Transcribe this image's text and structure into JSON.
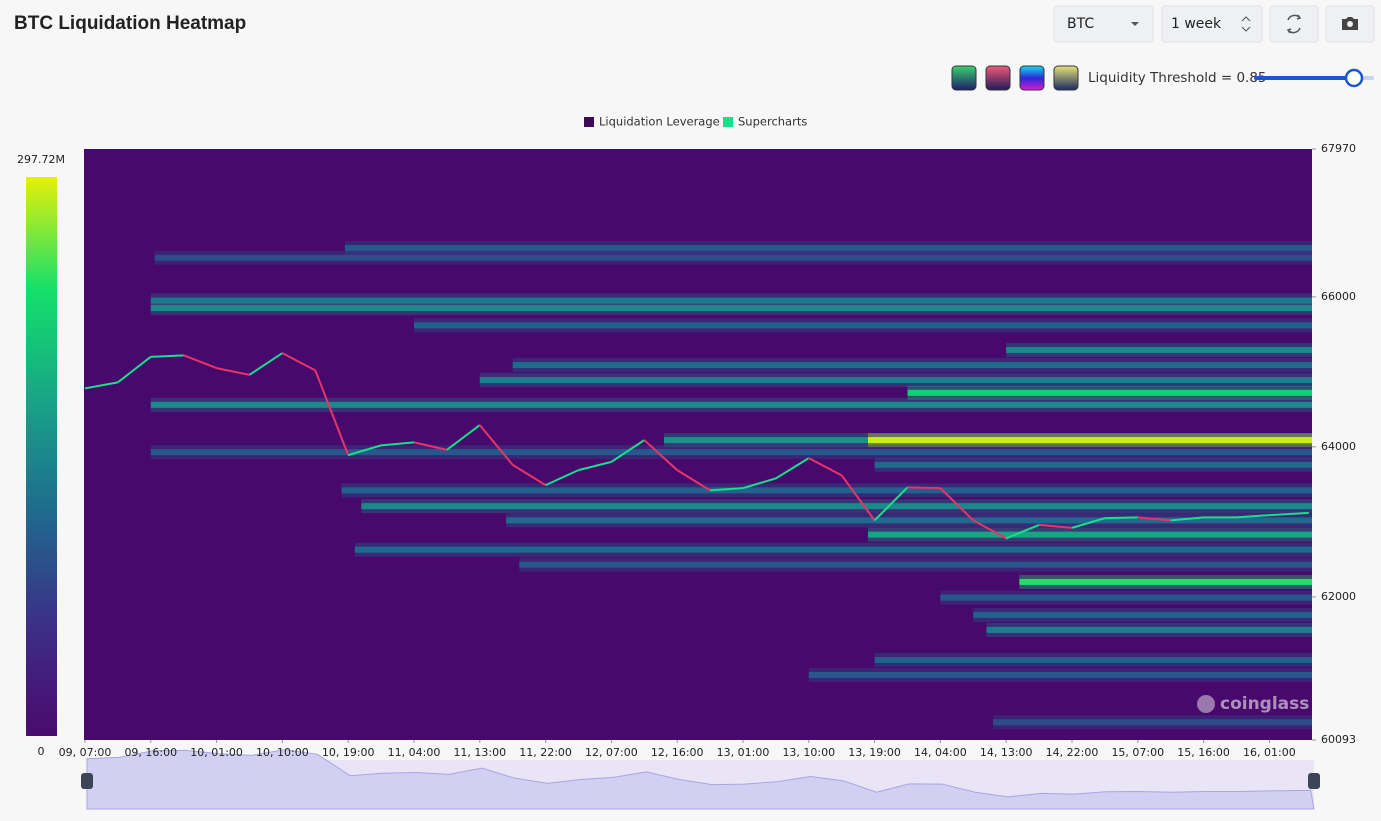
{
  "header": {
    "title": "BTC Liquidation Heatmap",
    "symbol": "BTC",
    "range": "1 week",
    "threshold": "Liquidity Threshold = 0.85"
  },
  "chart_data": {
    "type": "heatmap",
    "heatmap": {
      "name": "Liquidation Leverage",
      "color": "#3d0a55",
      "bands": [
        {
          "price": 66650,
          "start": 3.95,
          "value": 100000000
        },
        {
          "price": 66520,
          "start": 1.06,
          "value": 90000000
        },
        {
          "price": 65950,
          "start": 1.0,
          "value": 130000000
        },
        {
          "price": 65850,
          "start": 1.0,
          "value": 150000000
        },
        {
          "price": 65620,
          "start": 5.0,
          "value": 110000000
        },
        {
          "price": 65290,
          "start": 14.0,
          "value": 150000000
        },
        {
          "price": 65090,
          "start": 6.5,
          "value": 120000000
        },
        {
          "price": 64890,
          "start": 6.0,
          "value": 140000000
        },
        {
          "price": 64720,
          "start": 12.5,
          "value": 220000000
        },
        {
          "price": 64560,
          "start": 1.0,
          "value": 150000000
        },
        {
          "price": 64090,
          "start": 8.8,
          "value": 160000000
        },
        {
          "price": 64090,
          "start": 11.9,
          "value": 290000000
        },
        {
          "price": 63930,
          "start": 1.0,
          "value": 100000000
        },
        {
          "price": 63760,
          "start": 12.0,
          "value": 120000000
        },
        {
          "price": 63420,
          "start": 3.9,
          "value": 110000000
        },
        {
          "price": 63210,
          "start": 4.2,
          "value": 150000000
        },
        {
          "price": 63020,
          "start": 6.4,
          "value": 120000000
        },
        {
          "price": 62830,
          "start": 11.9,
          "value": 180000000
        },
        {
          "price": 62630,
          "start": 4.1,
          "value": 120000000
        },
        {
          "price": 62430,
          "start": 6.6,
          "value": 100000000
        },
        {
          "price": 62200,
          "start": 14.2,
          "value": 240000000
        },
        {
          "price": 61990,
          "start": 13.0,
          "value": 100000000
        },
        {
          "price": 61760,
          "start": 13.5,
          "value": 110000000
        },
        {
          "price": 61560,
          "start": 13.7,
          "value": 140000000
        },
        {
          "price": 61160,
          "start": 12.0,
          "value": 110000000
        },
        {
          "price": 60960,
          "start": 11.0,
          "value": 100000000
        },
        {
          "price": 60330,
          "start": 13.8,
          "value": 90000000
        }
      ]
    },
    "series": [
      {
        "name": "Supercharts",
        "color": "#16e08a",
        "down_color": "#e8336a",
        "x": [
          0,
          0.5,
          1,
          1.5,
          2,
          2.5,
          3,
          3.5,
          4,
          4.5,
          5,
          5.5,
          6,
          6.5,
          7,
          7.5,
          8,
          8.5,
          9,
          9.5,
          10,
          10.5,
          11,
          11.5,
          12,
          12.5,
          13,
          13.5,
          14,
          14.5,
          15,
          15.5,
          16,
          16.5,
          17,
          17.5,
          18,
          18.6
        ],
        "values": [
          64780,
          64860,
          65200,
          65220,
          65050,
          64960,
          65250,
          65020,
          63890,
          64020,
          64060,
          63960,
          64290,
          63760,
          63490,
          63690,
          63800,
          64090,
          63690,
          63420,
          63450,
          63580,
          63850,
          63620,
          63020,
          63460,
          63450,
          63020,
          62780,
          62960,
          62920,
          63050,
          63060,
          63020,
          63060,
          63060,
          63090,
          63120
        ]
      }
    ],
    "xlim": [
      0,
      18.65
    ],
    "xticks": [
      {
        "value": 0,
        "label": "09, 07:00"
      },
      {
        "value": 1,
        "label": "09, 16:00"
      },
      {
        "value": 2,
        "label": "10, 01:00"
      },
      {
        "value": 3,
        "label": "10, 10:00"
      },
      {
        "value": 4,
        "label": "10, 19:00"
      },
      {
        "value": 5,
        "label": "11, 04:00"
      },
      {
        "value": 6,
        "label": "11, 13:00"
      },
      {
        "value": 7,
        "label": "11, 22:00"
      },
      {
        "value": 8,
        "label": "12, 07:00"
      },
      {
        "value": 9,
        "label": "12, 16:00"
      },
      {
        "value": 10,
        "label": "13, 01:00"
      },
      {
        "value": 11,
        "label": "13, 10:00"
      },
      {
        "value": 12,
        "label": "13, 19:00"
      },
      {
        "value": 13,
        "label": "14, 04:00"
      },
      {
        "value": 14,
        "label": "14, 13:00"
      },
      {
        "value": 15,
        "label": "14, 22:00"
      },
      {
        "value": 16,
        "label": "15, 07:00"
      },
      {
        "value": 17,
        "label": "15, 16:00"
      },
      {
        "value": 18,
        "label": "16, 01:00"
      }
    ],
    "ylim": [
      60093,
      67970
    ],
    "yticks": [
      67970,
      66000,
      64000,
      62000,
      60093
    ],
    "clim": [
      0,
      297720000
    ],
    "cticks": [
      {
        "value": 297720000,
        "label": "297.72M"
      },
      0
    ],
    "background": "#47096b",
    "watermark": "coinglass"
  }
}
